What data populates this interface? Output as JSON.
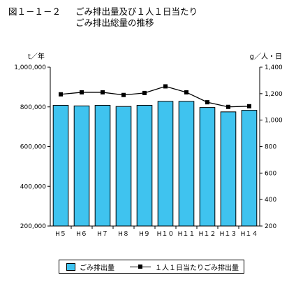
{
  "title": {
    "number": "図１－１－２",
    "line1": "ごみ排出量及び１人１日当たり",
    "line2": "ごみ排出総量の推移"
  },
  "units": {
    "left": "t／年",
    "right": "g／人・日"
  },
  "legend": {
    "bar_label": "ごみ排出量",
    "line_label": "１人１日当たりごみ排出量"
  },
  "colors": {
    "bar": "#3fc3ef",
    "line": "#000000"
  },
  "chart_data": {
    "type": "bar",
    "title": "",
    "categories": [
      "H５",
      "H６",
      "H７",
      "H８",
      "H９",
      "H１０",
      "H１１",
      "H１２",
      "H１３",
      "H１４"
    ],
    "series": [
      {
        "name": "ごみ排出量",
        "type": "bar",
        "axis": "left",
        "values": [
          808000,
          805000,
          808000,
          802000,
          808000,
          828000,
          828000,
          797000,
          775000,
          783000
        ]
      },
      {
        "name": "１人１日当たりごみ排出量",
        "type": "line",
        "axis": "right",
        "values": [
          1195,
          1210,
          1210,
          1190,
          1205,
          1255,
          1210,
          1135,
          1100,
          1105
        ]
      }
    ],
    "y_left": {
      "label": "t／年",
      "ylim": [
        200000,
        1000000
      ],
      "ticks": [
        200000,
        400000,
        600000,
        800000,
        1000000
      ],
      "tick_labels": [
        "200,000",
        "400,000",
        "600,000",
        "800,000",
        "1,000,000"
      ]
    },
    "y_right": {
      "label": "g／人・日",
      "ylim": [
        200,
        1400
      ],
      "ticks": [
        200,
        400,
        600,
        800,
        1000,
        1200,
        1400
      ],
      "tick_labels": [
        "200",
        "400",
        "600",
        "800",
        "1,000",
        "1,200",
        "1,400"
      ]
    },
    "grid": false,
    "legend_position": "bottom"
  }
}
